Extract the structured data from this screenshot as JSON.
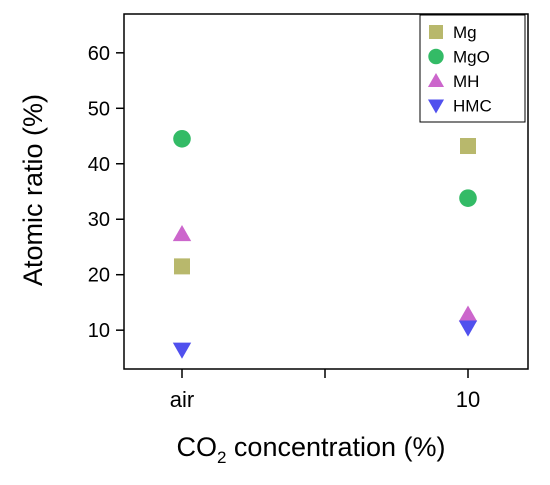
{
  "chart_data": {
    "type": "scatter",
    "title": "",
    "xlabel_main": "CO",
    "xlabel_sub": "2",
    "xlabel_rest": " concentration (%)",
    "ylabel": "Atomic ratio (%)",
    "categories": [
      "air",
      "10"
    ],
    "ylim": [
      3,
      67
    ],
    "yticks": [
      10,
      20,
      30,
      40,
      50,
      60
    ],
    "legend_position": "top-right",
    "series": [
      {
        "name": "Mg",
        "marker": "square",
        "color": "#b8b86c",
        "values": [
          21.5,
          43.2
        ]
      },
      {
        "name": "MgO",
        "marker": "circle",
        "color": "#33bb66",
        "values": [
          44.5,
          33.8
        ]
      },
      {
        "name": "MH",
        "marker": "triangle-up",
        "color": "#cc66cc",
        "values": [
          27.3,
          12.8
        ]
      },
      {
        "name": "HMC",
        "marker": "triangle-down",
        "color": "#5050ee",
        "values": [
          6.5,
          10.5
        ]
      }
    ]
  }
}
